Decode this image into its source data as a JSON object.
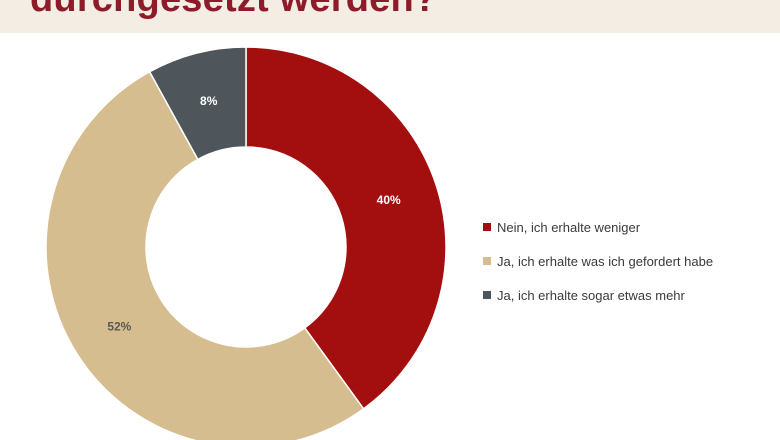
{
  "title": "durchgesetzt werden?",
  "colors": {
    "title": "#8e1b2a",
    "title_band": "#f3ede4"
  },
  "chart_data": {
    "type": "pie",
    "donut": true,
    "start_angle_deg": 0,
    "direction": "clockwise",
    "legend_position": "right",
    "categories": [
      "Nein, ich erhalte weniger",
      "Ja, ich erhalte was ich gefordert habe",
      "Ja, ich erhalte sogar etwas mehr"
    ],
    "values": [
      40,
      52,
      8
    ],
    "value_labels": [
      "40%",
      "52%",
      "8%"
    ],
    "colors": [
      "#a30f0f",
      "#d6bd8f",
      "#4e555b"
    ],
    "label_colors": [
      "#ffffff",
      "#595959",
      "#ffffff"
    ]
  }
}
